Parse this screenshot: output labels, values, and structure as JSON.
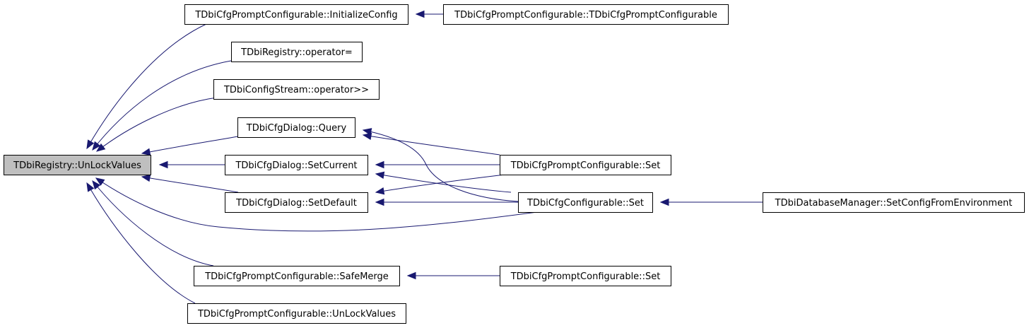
{
  "nodes": [
    {
      "id": "root",
      "label": "TDbiRegistry::UnLockValues",
      "highlight": true
    },
    {
      "id": "init",
      "label": "TDbiCfgPromptConfigurable::InitializeConfig"
    },
    {
      "id": "ctor",
      "label": "TDbiCfgPromptConfigurable::TDbiCfgPromptConfigurable"
    },
    {
      "id": "opeq",
      "label": "TDbiRegistry::operator="
    },
    {
      "id": "stream",
      "label": "TDbiConfigStream::operator>>"
    },
    {
      "id": "query",
      "label": "TDbiCfgDialog::Query"
    },
    {
      "id": "setcur",
      "label": "TDbiCfgDialog::SetCurrent"
    },
    {
      "id": "setdef",
      "label": "TDbiCfgDialog::SetDefault"
    },
    {
      "id": "pset",
      "label": "TDbiCfgPromptConfigurable::Set"
    },
    {
      "id": "cset",
      "label": "TDbiCfgConfigurable::Set"
    },
    {
      "id": "dbm",
      "label": "TDbiDatabaseManager::SetConfigFromEnvironment"
    },
    {
      "id": "safe",
      "label": "TDbiCfgPromptConfigurable::SafeMerge"
    },
    {
      "id": "pset2",
      "label": "TDbiCfgPromptConfigurable::Set"
    },
    {
      "id": "unlock",
      "label": "TDbiCfgPromptConfigurable::UnLockValues"
    }
  ],
  "edges": [
    {
      "from": "init",
      "to": "root"
    },
    {
      "from": "opeq",
      "to": "root"
    },
    {
      "from": "stream",
      "to": "root"
    },
    {
      "from": "query",
      "to": "root"
    },
    {
      "from": "setcur",
      "to": "root"
    },
    {
      "from": "setdef",
      "to": "root"
    },
    {
      "from": "cset",
      "to": "root"
    },
    {
      "from": "safe",
      "to": "root"
    },
    {
      "from": "unlock",
      "to": "root"
    },
    {
      "from": "ctor",
      "to": "init"
    },
    {
      "from": "pset",
      "to": "query"
    },
    {
      "from": "cset",
      "to": "query"
    },
    {
      "from": "pset",
      "to": "setcur"
    },
    {
      "from": "cset",
      "to": "setcur"
    },
    {
      "from": "pset",
      "to": "setdef"
    },
    {
      "from": "cset",
      "to": "setdef"
    },
    {
      "from": "dbm",
      "to": "cset"
    },
    {
      "from": "pset2",
      "to": "safe"
    }
  ],
  "colors": {
    "edge": "#191970",
    "root_fill": "#bfbfbf",
    "node_fill": "#ffffff",
    "node_border": "#000000"
  }
}
